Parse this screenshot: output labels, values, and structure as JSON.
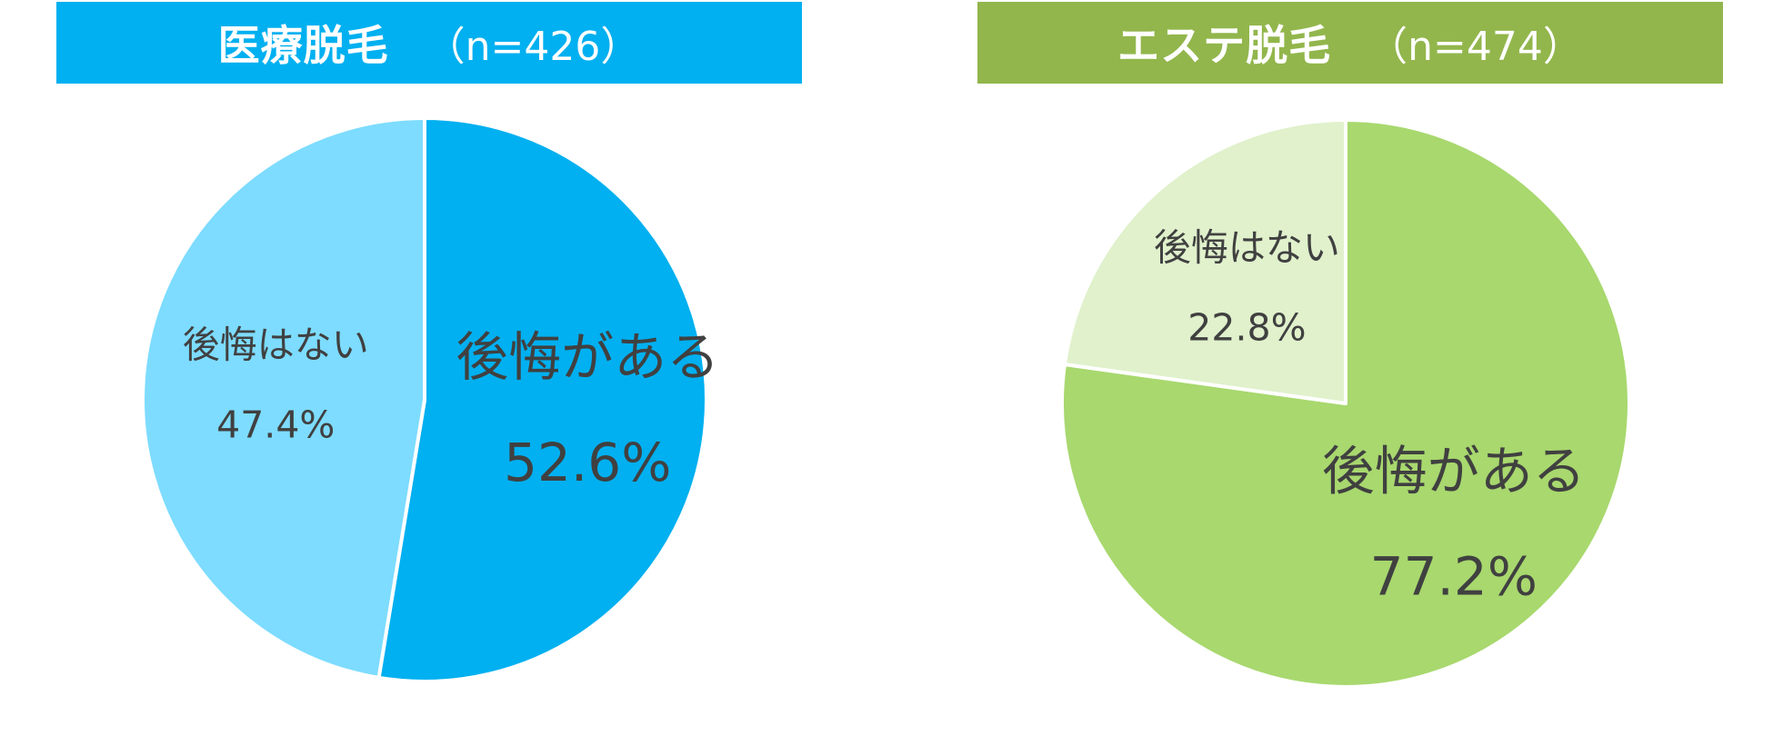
{
  "chart_data": [
    {
      "type": "pie",
      "title": "医療脱毛",
      "n_label": "（n=426）",
      "header_color": "#00B0F0",
      "slices": [
        {
          "label": "後悔がある",
          "value": 52.6,
          "value_label": "52.6%",
          "color": "#00B0F0"
        },
        {
          "label": "後悔はない",
          "value": 47.4,
          "value_label": "47.4%",
          "color": "#7DDCFF"
        }
      ]
    },
    {
      "type": "pie",
      "title": "エステ脱毛",
      "n_label": "（n=474）",
      "header_color": "#92B64C",
      "slices": [
        {
          "label": "後悔がある",
          "value": 77.2,
          "value_label": "77.2%",
          "color": "#A8D86E"
        },
        {
          "label": "後悔はない",
          "value": 22.8,
          "value_label": "22.8%",
          "color": "#E0F1CC"
        }
      ]
    }
  ]
}
